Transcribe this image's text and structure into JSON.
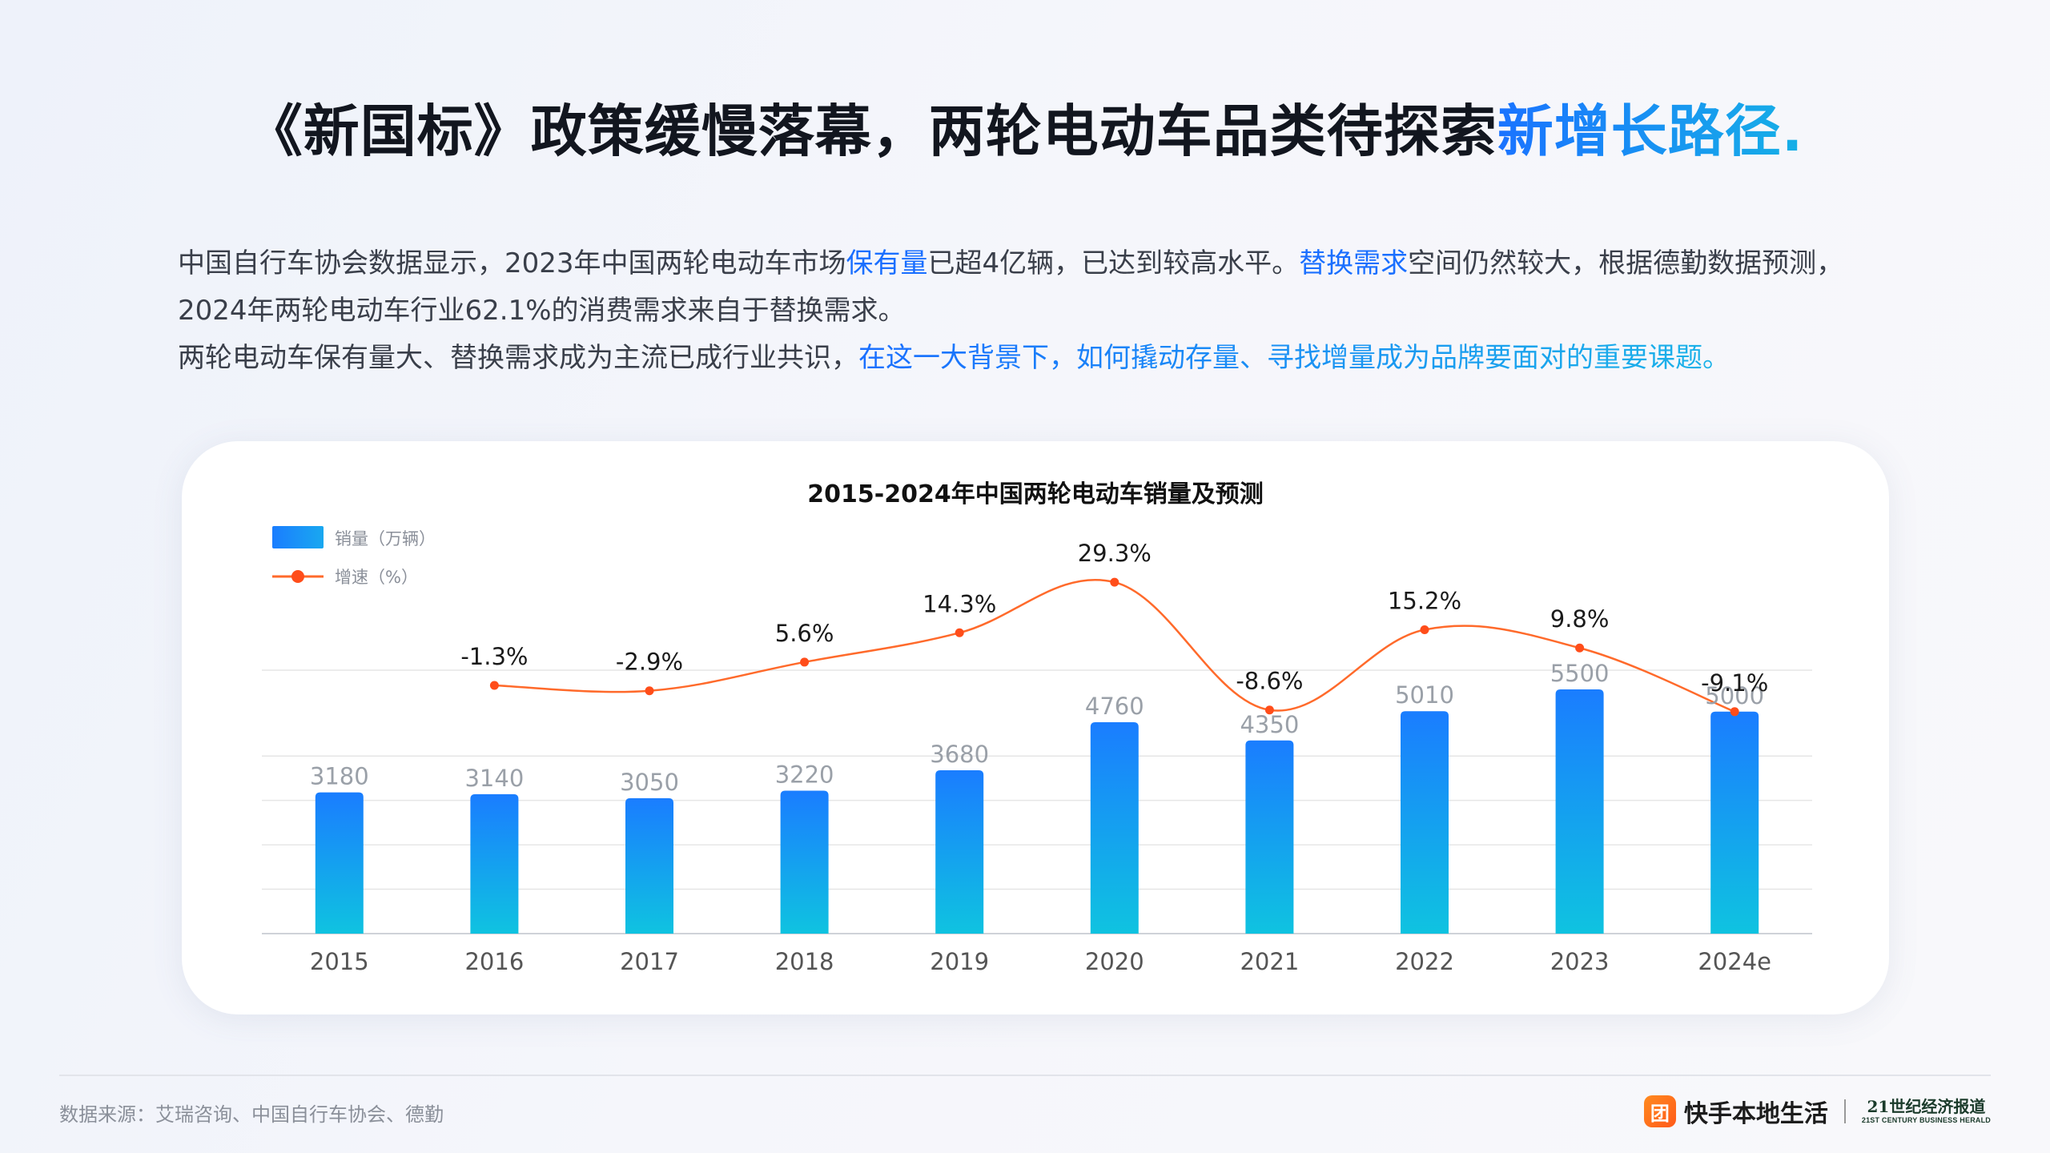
{
  "title": {
    "prefix": "《新国标》政策缓慢落幕，两轮电动车品类待探索",
    "highlight": "新增长路径."
  },
  "paragraphs": {
    "p1_a": "中国自行车协会数据显示，2023年中国两轮电动车市场",
    "p1_hl1": "保有量",
    "p1_b": "已超4亿辆，已达到较高水平。",
    "p1_hl2": "替换需求",
    "p1_c": "空间仍然较大，根据德勤数据预测，2024年两轮电动车行业62.1%的消费需求来自于替换需求。",
    "p2_a": "两轮电动车保有量大、替换需求成为主流已成行业共识，",
    "p2_hl": "在这一大背景下，如何撬动存量、寻找增量成为品牌要面对的重要课题。"
  },
  "chart_data": {
    "type": "bar",
    "title": "2015-2024年中国两轮电动车销量及预测",
    "categories": [
      "2015",
      "2016",
      "2017",
      "2018",
      "2019",
      "2020",
      "2021",
      "2022",
      "2023",
      "2024e"
    ],
    "series": [
      {
        "name": "销量（万辆）",
        "type": "bar",
        "values": [
          3180,
          3140,
          3050,
          3220,
          3680,
          4760,
          4350,
          5010,
          5500,
          5000
        ]
      },
      {
        "name": "增速（%）",
        "type": "line",
        "values": [
          null,
          -1.3,
          -2.9,
          5.6,
          14.3,
          29.3,
          -8.6,
          15.2,
          9.8,
          -9.1
        ],
        "labels": [
          null,
          "-1.3%",
          "-2.9%",
          "5.6%",
          "14.3%",
          "29.3%",
          "-8.6%",
          "15.2%",
          "9.8%",
          "-9.1%"
        ]
      }
    ],
    "legend_position": "top-left",
    "grid": true,
    "colors": {
      "bar_top": "#1a7dff",
      "bar_bottom": "#0fc3e0",
      "line": "#ff6a2b",
      "dot": "#ff4d1a",
      "bar_label": "#9aa0a8",
      "line_label": "#1a1a1a",
      "axis_label": "#555555",
      "grid": "#e6e6e6"
    }
  },
  "footer": {
    "source": "数据来源：艾瑞咨询、中国自行车协会、德勤",
    "brand_icon_glyph": "团",
    "brand_name": "快手本地生活",
    "partner_cn": "21世纪经济报道",
    "partner_en": "21ST CENTURY BUSINESS HERALD"
  }
}
